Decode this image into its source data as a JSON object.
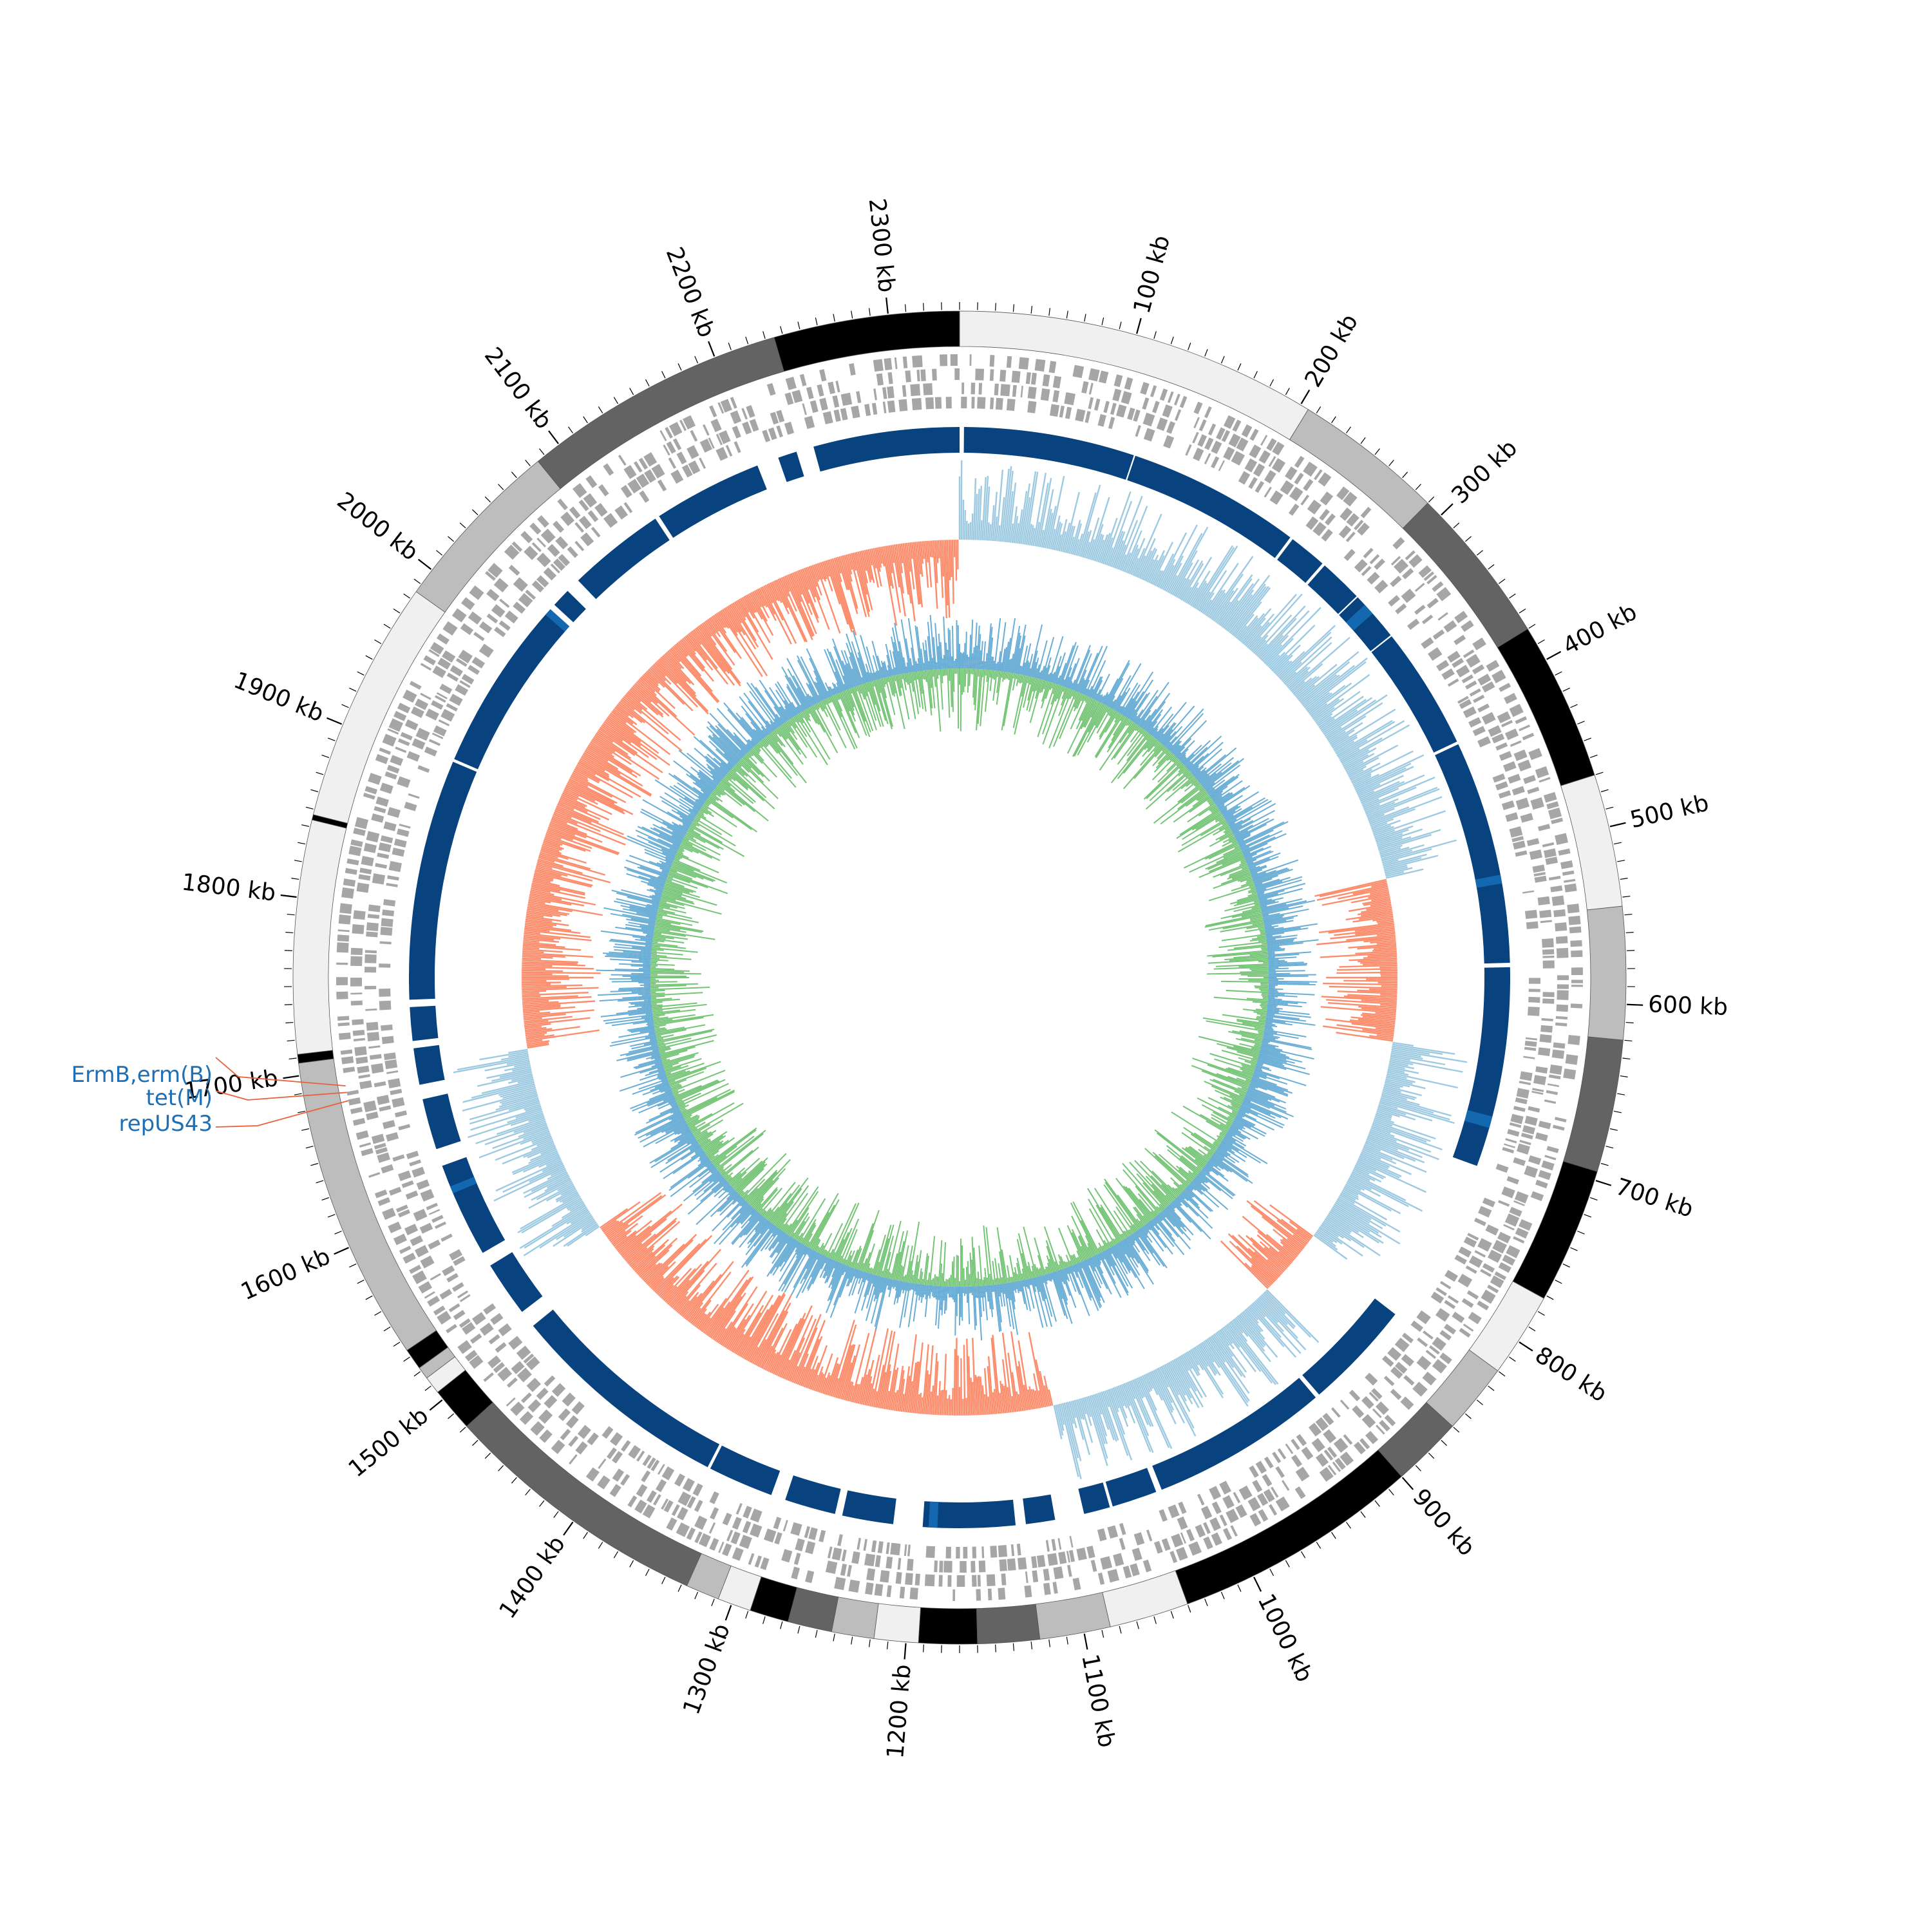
{
  "genome": {
    "length_kb": 2340,
    "tick_unit": "kb",
    "major_ticks_kb": [
      100,
      200,
      300,
      400,
      500,
      600,
      700,
      800,
      900,
      1000,
      1100,
      1200,
      1300,
      1400,
      1500,
      1600,
      1700,
      1800,
      1900,
      2000,
      2100,
      2200,
      2300
    ]
  },
  "contig_blocks": [
    {
      "start": 0,
      "end": 205,
      "color": "#f0f0f0"
    },
    {
      "start": 205,
      "end": 290,
      "color": "#bdbdbd"
    },
    {
      "start": 290,
      "end": 380,
      "color": "#636363"
    },
    {
      "start": 380,
      "end": 470,
      "color": "#000000"
    },
    {
      "start": 470,
      "end": 545,
      "color": "#f0f0f0"
    },
    {
      "start": 545,
      "end": 620,
      "color": "#bdbdbd"
    },
    {
      "start": 620,
      "end": 695,
      "color": "#636363"
    },
    {
      "start": 695,
      "end": 772,
      "color": "#000000"
    },
    {
      "start": 772,
      "end": 820,
      "color": "#f0f0f0"
    },
    {
      "start": 820,
      "end": 860,
      "color": "#bdbdbd"
    },
    {
      "start": 860,
      "end": 900,
      "color": "#636363"
    },
    {
      "start": 900,
      "end": 1040,
      "color": "#000000"
    },
    {
      "start": 1040,
      "end": 1085,
      "color": "#f0f0f0"
    },
    {
      "start": 1085,
      "end": 1125,
      "color": "#bdbdbd"
    },
    {
      "start": 1125,
      "end": 1160,
      "color": "#636363"
    },
    {
      "start": 1160,
      "end": 1193,
      "color": "#000000"
    },
    {
      "start": 1193,
      "end": 1218,
      "color": "#f0f0f0"
    },
    {
      "start": 1218,
      "end": 1242,
      "color": "#bdbdbd"
    },
    {
      "start": 1242,
      "end": 1267,
      "color": "#636363"
    },
    {
      "start": 1267,
      "end": 1289,
      "color": "#000000"
    },
    {
      "start": 1289,
      "end": 1308,
      "color": "#f0f0f0"
    },
    {
      "start": 1308,
      "end": 1327,
      "color": "#bdbdbd"
    },
    {
      "start": 1327,
      "end": 1480,
      "color": "#636363"
    },
    {
      "start": 1480,
      "end": 1505,
      "color": "#000000"
    },
    {
      "start": 1505,
      "end": 1515,
      "color": "#f0f0f0"
    },
    {
      "start": 1515,
      "end": 1522,
      "color": "#bdbdbd"
    },
    {
      "start": 1522,
      "end": 1534,
      "color": "#000000"
    },
    {
      "start": 1534,
      "end": 1707,
      "color": "#bdbdbd"
    },
    {
      "start": 1707,
      "end": 1712,
      "color": "#000000"
    },
    {
      "start": 1712,
      "end": 1844,
      "color": "#f0f0f0"
    },
    {
      "start": 1844,
      "end": 1847,
      "color": "#000000"
    },
    {
      "start": 1847,
      "end": 1985,
      "color": "#f0f0f0"
    },
    {
      "start": 1985,
      "end": 2085,
      "color": "#bdbdbd"
    },
    {
      "start": 2085,
      "end": 2235,
      "color": "#636363"
    },
    {
      "start": 2235,
      "end": 2340,
      "color": "#000000"
    }
  ],
  "blast_hits": [
    {
      "start": 3,
      "end": 120
    },
    {
      "start": 121,
      "end": 240
    },
    {
      "start": 242,
      "end": 268
    },
    {
      "start": 270,
      "end": 300
    },
    {
      "start": 301,
      "end": 335
    },
    {
      "start": 336,
      "end": 420
    },
    {
      "start": 422,
      "end": 575
    },
    {
      "start": 578,
      "end": 715
    },
    {
      "start": 830,
      "end": 905
    },
    {
      "start": 908,
      "end": 1030
    },
    {
      "start": 1034,
      "end": 1065
    },
    {
      "start": 1067,
      "end": 1085
    },
    {
      "start": 1105,
      "end": 1125
    },
    {
      "start": 1132,
      "end": 1195
    },
    {
      "start": 1215,
      "end": 1250
    },
    {
      "start": 1255,
      "end": 1290
    },
    {
      "start": 1300,
      "end": 1345
    },
    {
      "start": 1347,
      "end": 1500
    },
    {
      "start": 1512,
      "end": 1550
    },
    {
      "start": 1560,
      "end": 1625
    },
    {
      "start": 1637,
      "end": 1672
    },
    {
      "start": 1682,
      "end": 1707
    },
    {
      "start": 1712,
      "end": 1735
    },
    {
      "start": 1740,
      "end": 1905
    },
    {
      "start": 1907,
      "end": 2025
    },
    {
      "start": 2032,
      "end": 2045
    },
    {
      "start": 2055,
      "end": 2122
    },
    {
      "start": 2125,
      "end": 2200
    },
    {
      "start": 2215,
      "end": 2228
    },
    {
      "start": 2240,
      "end": 2340
    }
  ],
  "highlight_hits": [
    {
      "start": 308,
      "end": 316
    },
    {
      "start": 515,
      "end": 521
    },
    {
      "start": 680,
      "end": 688
    },
    {
      "start": 1185,
      "end": 1191
    },
    {
      "start": 1605,
      "end": 1610
    },
    {
      "start": 2023,
      "end": 2028
    }
  ],
  "resistance_genes": [
    {
      "label": "ErmB,erm(B)",
      "position": 1690
    },
    {
      "label": "tet(M)",
      "position": 1686
    },
    {
      "label": "repUS43",
      "position": 1681
    }
  ],
  "colors": {
    "gene_tracks": "#a6a6a6",
    "blast": "#08427f",
    "blast_highlight": "#1468b0",
    "gc_skew_positive": "#9ecae1",
    "gc_skew_negative": "#fc8d6c",
    "gc_content_outer": "#6aaed6",
    "gc_content_inner": "#74c476",
    "label_line": "#e8603c",
    "label_text": "#1f6fb5"
  }
}
